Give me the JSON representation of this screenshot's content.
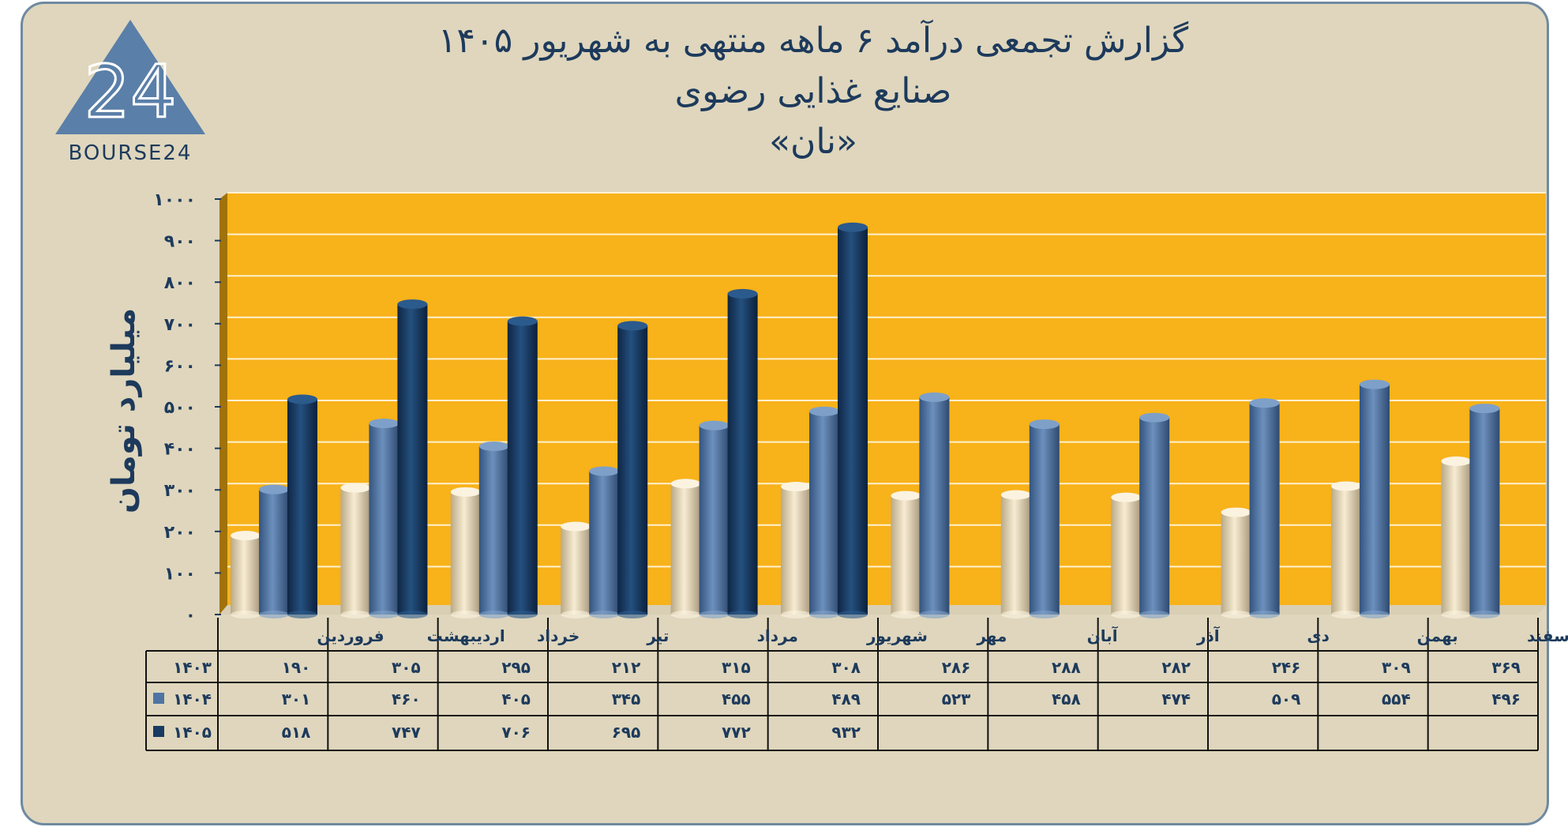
{
  "header": {
    "title_line1": "گزارش تجمعی درآمد ۶ ماهه منتهی به شهریور ۱۴۰۵",
    "title_line2": "صنایع غذایی رضوی",
    "title_line3": "«نان»"
  },
  "logo": {
    "digits": "24",
    "brand": "BOURSE24"
  },
  "colors": {
    "background": "#dfd6bd",
    "plot_area": "#f8b21a",
    "series_1403": "#ede0c4",
    "series_1404": "#4f74a4",
    "series_1405": "#183a63",
    "text": "#1d3a5c"
  },
  "chart_data": {
    "type": "bar",
    "style": "3d-cylinder",
    "ylabel": "میلیارد تومان",
    "ylim": [
      0,
      1000
    ],
    "yticks": [
      "۰",
      "۱۰۰",
      "۲۰۰",
      "۳۰۰",
      "۴۰۰",
      "۵۰۰",
      "۶۰۰",
      "۷۰۰",
      "۸۰۰",
      "۹۰۰",
      "۱۰۰۰"
    ],
    "ytick_values": [
      0,
      100,
      200,
      300,
      400,
      500,
      600,
      700,
      800,
      900,
      1000
    ],
    "grid": true,
    "legend": "data-table-below",
    "categories": [
      "فروردین",
      "اردیبهشت",
      "خرداد",
      "تیر",
      "مرداد",
      "شهریور",
      "مهر",
      "آبان",
      "آذر",
      "دی",
      "بهمن",
      "اسفند"
    ],
    "series": [
      {
        "name": "۱۴۰۳",
        "values": [
          190,
          305,
          295,
          212,
          315,
          308,
          286,
          288,
          282,
          246,
          309,
          369
        ],
        "labels": [
          "۱۹۰",
          "۳۰۵",
          "۲۹۵",
          "۲۱۲",
          "۳۱۵",
          "۳۰۸",
          "۲۸۶",
          "۲۸۸",
          "۲۸۲",
          "۲۴۶",
          "۳۰۹",
          "۳۶۹"
        ]
      },
      {
        "name": "۱۴۰۴",
        "values": [
          301,
          460,
          405,
          345,
          455,
          489,
          523,
          458,
          474,
          509,
          554,
          496
        ],
        "labels": [
          "۳۰۱",
          "۴۶۰",
          "۴۰۵",
          "۳۴۵",
          "۴۵۵",
          "۴۸۹",
          "۵۲۳",
          "۴۵۸",
          "۴۷۴",
          "۵۰۹",
          "۵۵۴",
          "۴۹۶"
        ]
      },
      {
        "name": "۱۴۰۵",
        "values": [
          518,
          747,
          706,
          695,
          772,
          932,
          null,
          null,
          null,
          null,
          null,
          null
        ],
        "labels": [
          "۵۱۸",
          "۷۴۷",
          "۷۰۶",
          "۶۹۵",
          "۷۷۲",
          "۹۳۲",
          "",
          "",
          "",
          "",
          "",
          ""
        ]
      }
    ]
  }
}
